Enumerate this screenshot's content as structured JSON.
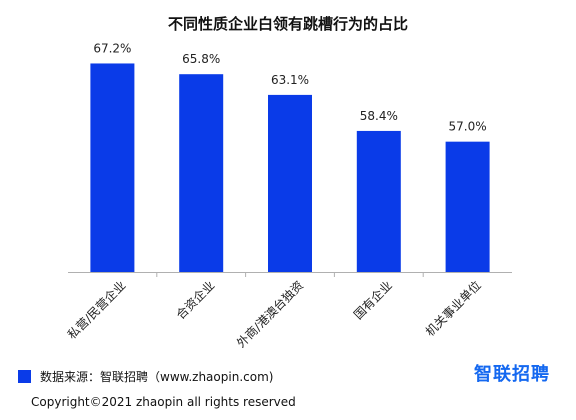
{
  "chart_data": {
    "type": "bar",
    "title": "不同性质企业白领有跳槽行为的占比",
    "categories": [
      "私营/民营企业",
      "合资企业",
      "外商/港澳台独资",
      "国有企业",
      "机关事业单位"
    ],
    "values": [
      67.2,
      65.8,
      63.1,
      58.4,
      57.0
    ],
    "value_labels": [
      "67.2%",
      "65.8%",
      "63.1%",
      "58.4%",
      "57.0%"
    ],
    "ylim": [
      40,
      70
    ],
    "grid": false,
    "bar_color": "#0a3be8",
    "xlabel": "",
    "ylabel": ""
  },
  "footer": {
    "source": "数据来源：智联招聘（www.zhaopin.com)",
    "brand": "智联招聘",
    "copyright": "Copyright©2021 zhaopin all rights reserved"
  },
  "colors": {
    "bar": "#0a3be8",
    "brand": "#1468f0",
    "axis": "#b0b0b0"
  }
}
